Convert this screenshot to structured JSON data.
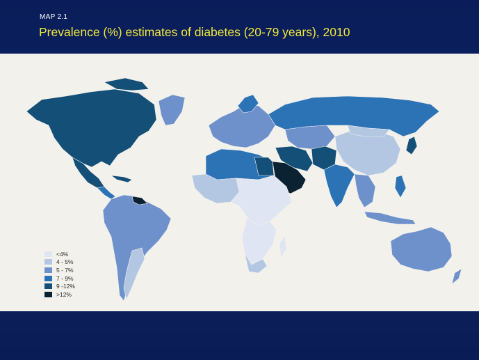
{
  "slide": {
    "label": "MAP 2.1",
    "title": "Prevalence (%) estimates of diabetes (20-79 years), 2010"
  },
  "colors": {
    "background": "#0b1f5c",
    "title": "#f2e83a",
    "map_panel": "#f2f1ec",
    "c1": "#dfe5f2",
    "c2": "#b3c7e3",
    "c3": "#6e91cb",
    "c4": "#2c73b6",
    "c5": "#144f78",
    "c6": "#0b2233"
  },
  "legend": [
    {
      "label": "<4%",
      "color": "#dfe5f2"
    },
    {
      "label": "4 - 5%",
      "color": "#b3c7e3"
    },
    {
      "label": "5 - 7%",
      "color": "#6e91cb"
    },
    {
      "label": "7 - 9%",
      "color": "#2c73b6"
    },
    {
      "label": "9 -12%",
      "color": "#144f78"
    },
    {
      "label": ">12%",
      "color": "#0b2233"
    }
  ]
}
